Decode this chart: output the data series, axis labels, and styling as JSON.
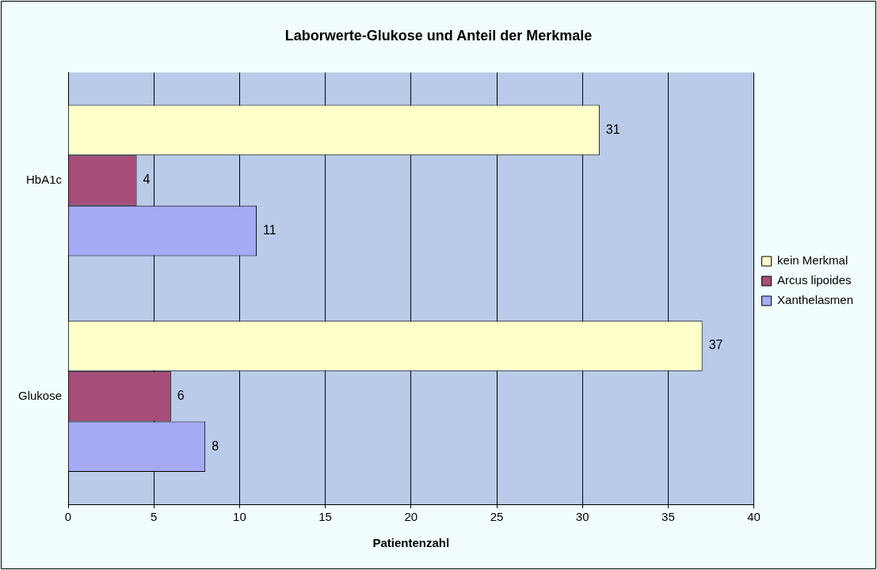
{
  "chart_data": {
    "type": "bar",
    "orientation": "horizontal",
    "title": "Laborwerte-Glukose und Anteil der Merkmale",
    "xlabel": "Patientenzahl",
    "categories": [
      "HbA1c",
      "Glukose"
    ],
    "series": [
      {
        "name": "kein Merkmal",
        "color": "#ffffcc",
        "values": [
          31,
          37
        ]
      },
      {
        "name": "Arcus lipoides",
        "color": "#a64d79",
        "values": [
          4,
          6
        ]
      },
      {
        "name": "Xanthelasmen",
        "color": "#a6aaf5",
        "values": [
          11,
          8
        ]
      }
    ],
    "xlim": [
      0,
      40
    ],
    "xticks": [
      0,
      5,
      10,
      15,
      20,
      25,
      30,
      35,
      40
    ],
    "grid": "x",
    "legend": "right",
    "data_labels": true
  }
}
